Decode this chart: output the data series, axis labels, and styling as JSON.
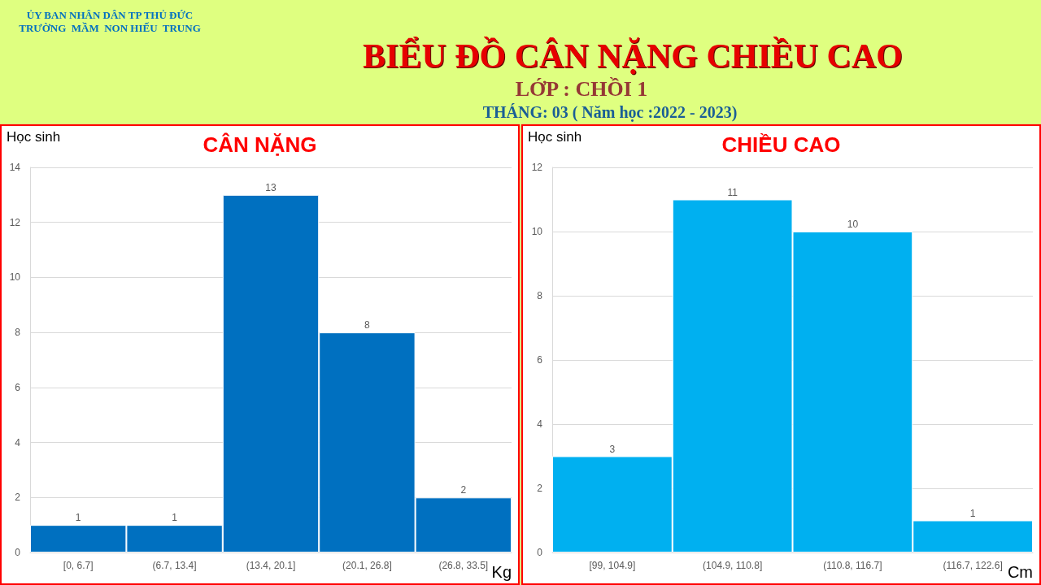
{
  "chart_data": [
    {
      "type": "other",
      "title": "BIỂU ĐỒ CÂN NẶNG CHIỀU CAO",
      "subtitle": "LỚP : CHỒI 1",
      "annotations": [
        "ỦY BAN NHÂN DÂN TP THỦ ĐỨC",
        "TRƯỜNG  MẦM  NON HIẾU  TRUNG",
        "THÁNG: 03 ( Năm học :2022 - 2023)"
      ]
    },
    {
      "type": "bar",
      "title": "CÂN NẶNG",
      "ylabel": "Học sinh",
      "xlabel": "Kg",
      "categories": [
        "[0, 6.7]",
        "(6.7, 13.4]",
        "(13.4, 20.1]",
        "(20.1, 26.8]",
        "(26.8, 33.5]"
      ],
      "values": [
        1,
        1,
        13,
        8,
        2
      ],
      "color": "#0070c0",
      "ylim": [
        0,
        14
      ],
      "yticks": [
        0,
        2,
        4,
        6,
        8,
        10,
        12,
        14
      ],
      "grid": "y",
      "data_labels": true
    },
    {
      "type": "bar",
      "title": "CHIỀU CAO",
      "ylabel": "Học sinh",
      "xlabel": "Cm",
      "categories": [
        "[99, 104.9]",
        "(104.9, 110.8]",
        "(110.8, 116.7]",
        "(116.7, 122.6]"
      ],
      "values": [
        3,
        11,
        10,
        1
      ],
      "color": "#00b0f0",
      "ylim": [
        0,
        12
      ],
      "yticks": [
        0,
        2,
        4,
        6,
        8,
        10,
        12
      ],
      "grid": "y",
      "data_labels": true
    }
  ]
}
